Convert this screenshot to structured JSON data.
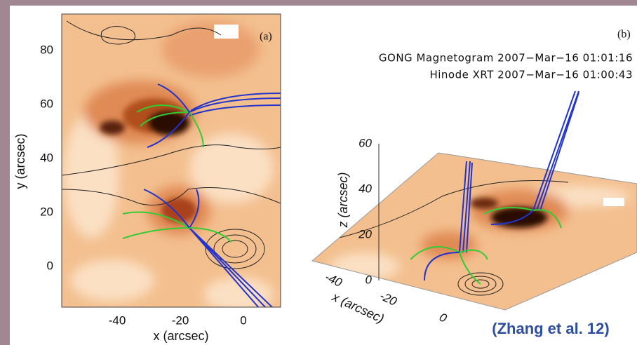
{
  "panel_a": {
    "label": "(a)",
    "y_axis_label": "y (arcsec)",
    "x_axis_label": "x (arcsec)",
    "yticks": [
      80,
      60,
      40,
      20,
      0
    ],
    "xticks": [
      -40,
      -20,
      0
    ]
  },
  "panel_b": {
    "label": "(b)",
    "caption_lines": [
      "GONG Magnetogram 2007−Mar−16 01:01:16",
      "Hinode XRT 2007−Mar−16 01:00:43"
    ],
    "z_axis_label": "z (arcsec)",
    "zticks": [
      60,
      40,
      20,
      0
    ],
    "x_axis_label": "x (arcsec)",
    "xticks": [
      -40,
      -20,
      0
    ]
  },
  "credit": "(Zhang et al. 12)"
}
